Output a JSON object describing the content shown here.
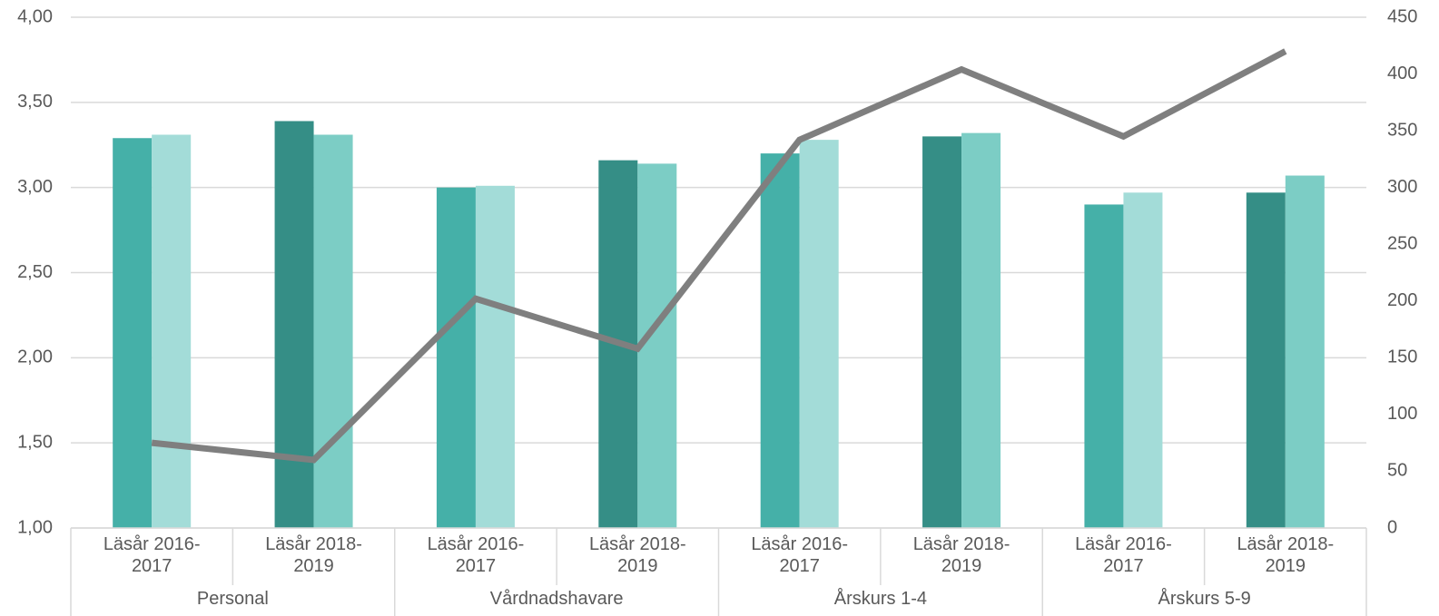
{
  "chart_data": {
    "type": "bar",
    "categories": [
      "Läsår 2016-2017",
      "Läsår 2018-2019",
      "Läsår 2016-2017",
      "Läsår 2018-2019",
      "Läsår 2016-2017",
      "Läsår 2018-2019",
      "Läsår 2016-2017",
      "Läsår 2018-2019"
    ],
    "groups": [
      "Personal",
      "Vårdnadshavare",
      "Årskurs 1-4",
      "Årskurs 5-9"
    ],
    "series": [
      {
        "values": [
          3.29,
          3.39,
          3.0,
          3.16,
          3.2,
          3.3,
          2.9,
          2.97
        ],
        "colors": [
          "#45b0a8",
          "#358e86",
          "#45b0a8",
          "#358e86",
          "#45b0a8",
          "#358e86",
          "#45b0a8",
          "#358e86"
        ]
      },
      {
        "values": [
          3.31,
          3.31,
          3.01,
          3.14,
          3.28,
          3.32,
          2.97,
          3.07
        ],
        "colors": [
          "#a3dcd8",
          "#7ccdc5",
          "#a3dcd8",
          "#7ccdc5",
          "#a3dcd8",
          "#7ccdc5",
          "#a3dcd8",
          "#7ccdc5"
        ]
      },
      {
        "type": "line",
        "axis": "y2",
        "color": "#7f7f7f",
        "values": [
          75,
          60,
          202,
          158,
          342,
          404,
          345,
          420
        ]
      }
    ],
    "ylim": [
      1,
      4
    ],
    "yticks": [
      {
        "value": 1,
        "label": "1,00"
      },
      {
        "value": 1.5,
        "label": "1,50"
      },
      {
        "value": 2,
        "label": "2,00"
      },
      {
        "value": 2.5,
        "label": "2,50"
      },
      {
        "value": 3,
        "label": "3,00"
      },
      {
        "value": 3.5,
        "label": "3,50"
      },
      {
        "value": 4,
        "label": "4,00"
      }
    ],
    "y2lim": [
      0,
      450
    ],
    "y2ticks": [
      0,
      50,
      100,
      150,
      200,
      250,
      300,
      350,
      400,
      450
    ],
    "grid": true
  }
}
